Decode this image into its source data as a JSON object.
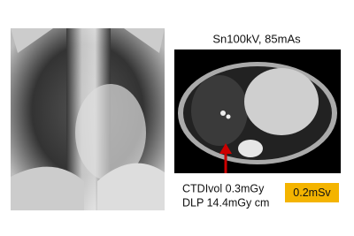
{
  "ct_panel": {
    "protocol": "Sn100kV, 85mAs"
  },
  "dose": {
    "ctdi": "CTDIvol 0.3mGy",
    "dlp": "DLP 14.4mGy cm",
    "effective_dose": "0.2mSv"
  }
}
